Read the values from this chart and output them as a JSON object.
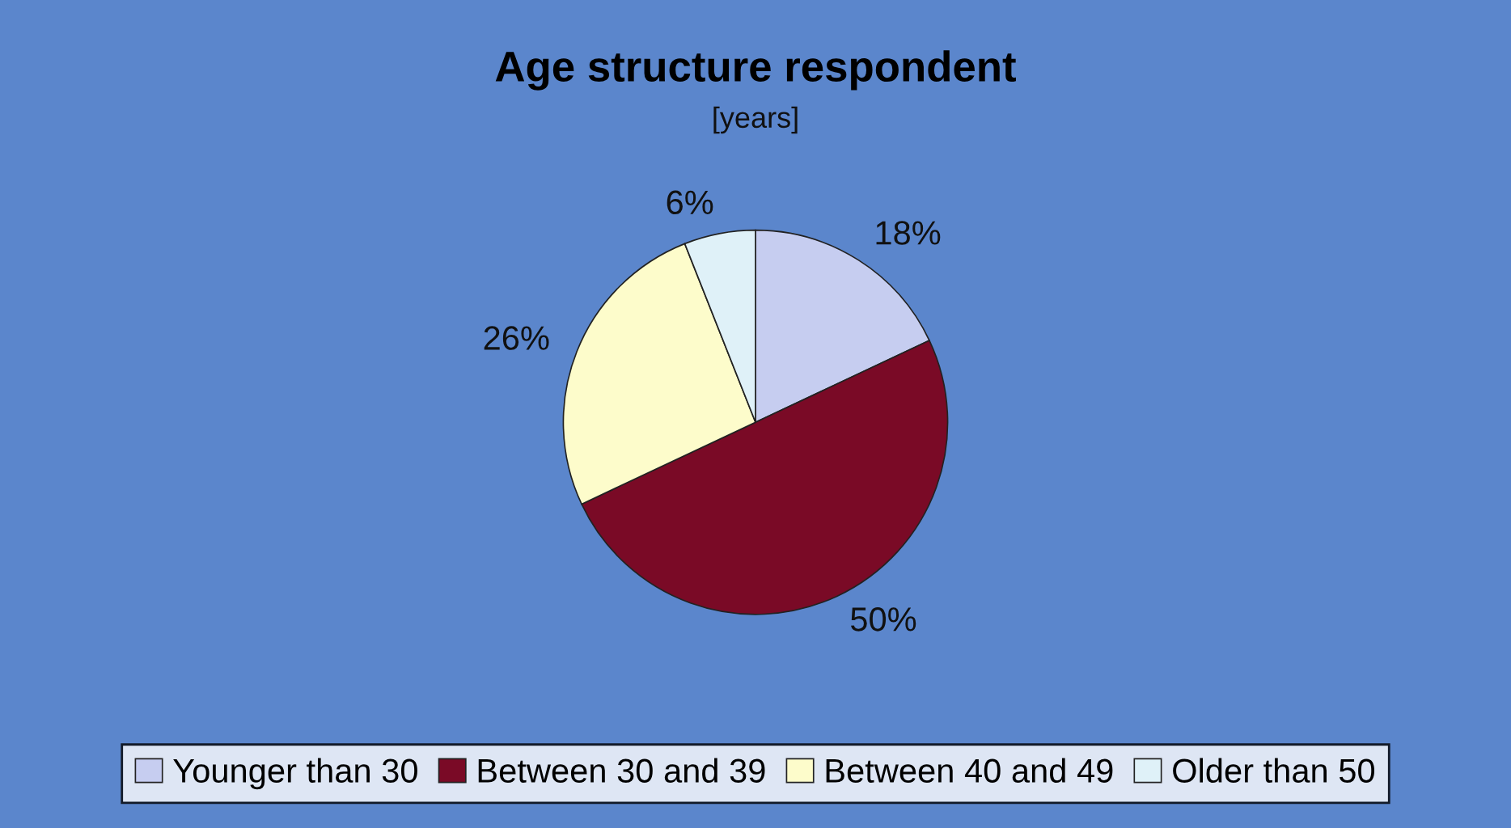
{
  "chart_data": {
    "type": "pie",
    "title": "Age structure respondent",
    "subtitle": "[years]",
    "categories": [
      "Younger than 30",
      "Between 30 and 39",
      "Between 40 and 49",
      "Older than 50"
    ],
    "values": [
      18,
      50,
      26,
      6
    ],
    "colors": [
      "#c6cdf0",
      "#7a0a26",
      "#fdfccb",
      "#dff1f8"
    ],
    "value_labels": [
      "18%",
      "50%",
      "26%",
      "6%"
    ],
    "legend": "bottom"
  }
}
